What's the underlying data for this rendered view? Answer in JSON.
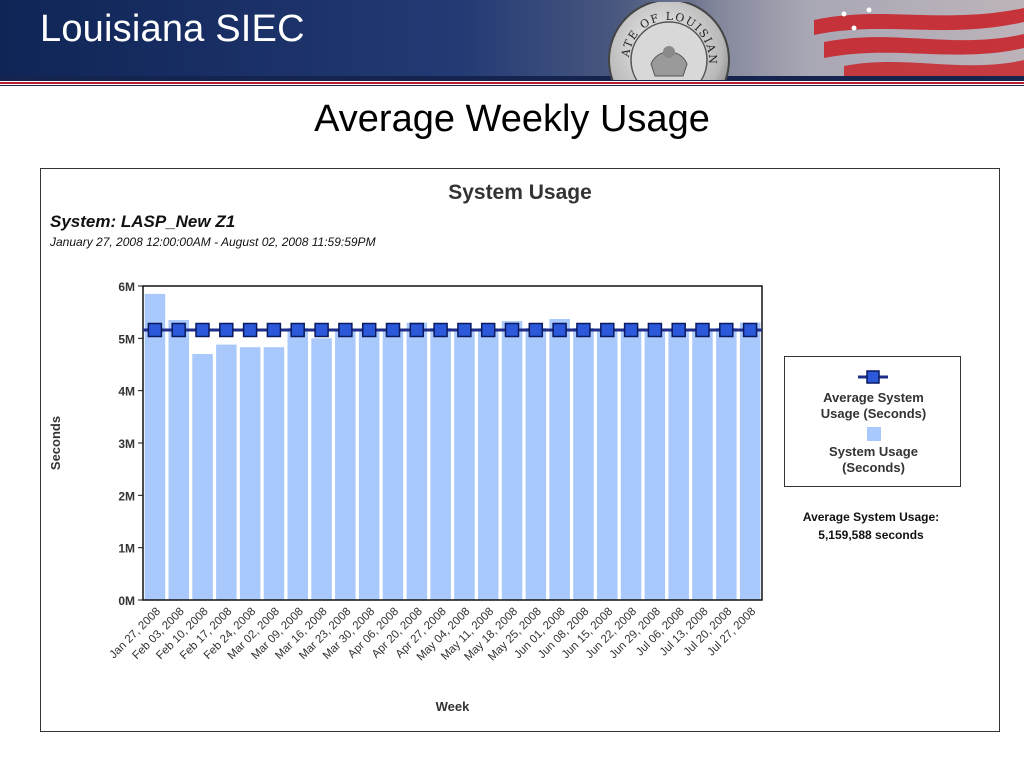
{
  "header": {
    "title": "Louisiana SIEC",
    "seal_text": "STATE OF LOUISIANA"
  },
  "slide": {
    "title": "Average Weekly Usage"
  },
  "chart": {
    "title": "System Usage",
    "system_label": "System: LASP_New Z1",
    "date_range": "January 27, 2008 12:00:00AM - August 02, 2008 11:59:59PM",
    "legend": {
      "line_label_1": "Average System",
      "line_label_2": "Usage (Seconds)",
      "bar_label_1": "System Usage",
      "bar_label_2": "(Seconds)"
    },
    "summary": {
      "label": "Average System Usage:",
      "value": "5,159,588 seconds"
    }
  },
  "colors": {
    "bar": "#a9c8fb",
    "line": "#1f2e8a",
    "marker": "#2b59d9",
    "banner": "#0f2556",
    "accent_red": "#b7202a"
  },
  "chart_data": {
    "type": "bar",
    "title": "System Usage",
    "xlabel": "Week",
    "ylabel": "Seconds",
    "ylim": [
      0,
      6000000
    ],
    "yticks": [
      {
        "value": 0,
        "label": "0M"
      },
      {
        "value": 1000000,
        "label": "1M"
      },
      {
        "value": 2000000,
        "label": "2M"
      },
      {
        "value": 3000000,
        "label": "3M"
      },
      {
        "value": 4000000,
        "label": "4M"
      },
      {
        "value": 5000000,
        "label": "5M"
      },
      {
        "value": 6000000,
        "label": "6M"
      }
    ],
    "categories": [
      "Jan 27, 2008",
      "Feb 03, 2008",
      "Feb 10, 2008",
      "Feb 17, 2008",
      "Feb 24, 2008",
      "Mar 02, 2008",
      "Mar 09, 2008",
      "Mar 16, 2008",
      "Mar 23, 2008",
      "Mar 30, 2008",
      "Apr 06, 2008",
      "Apr 20, 2008",
      "Apr 27, 2008",
      "May 04, 2008",
      "May 11, 2008",
      "May 18, 2008",
      "May 25, 2008",
      "Jun 01, 2008",
      "Jun 08, 2008",
      "Jun 15, 2008",
      "Jun 22, 2008",
      "Jun 29, 2008",
      "Jul 06, 2008",
      "Jul 13, 2008",
      "Jul 20, 2008",
      "Jul 27, 2008"
    ],
    "series": [
      {
        "name": "System Usage (Seconds)",
        "type": "bar",
        "values": [
          5850000,
          5350000,
          4700000,
          4880000,
          4830000,
          4830000,
          5200000,
          5000000,
          5170000,
          5180000,
          5170000,
          5300000,
          5200000,
          5180000,
          5190000,
          5330000,
          5200000,
          5370000,
          5200000,
          5180000,
          5150000,
          5170000,
          5160000,
          5180000,
          5200000,
          5300000
        ]
      },
      {
        "name": "Average System Usage (Seconds)",
        "type": "line",
        "values": [
          5159588,
          5159588,
          5159588,
          5159588,
          5159588,
          5159588,
          5159588,
          5159588,
          5159588,
          5159588,
          5159588,
          5159588,
          5159588,
          5159588,
          5159588,
          5159588,
          5159588,
          5159588,
          5159588,
          5159588,
          5159588,
          5159588,
          5159588,
          5159588,
          5159588,
          5159588
        ]
      }
    ],
    "grid": false,
    "legend_position": "right"
  }
}
